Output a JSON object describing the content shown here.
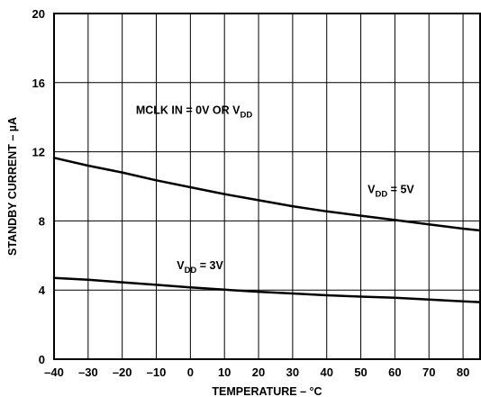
{
  "chart_data": {
    "type": "line",
    "title": "",
    "xlabel": "TEMPERATURE – °C",
    "ylabel": "STANDBY CURRENT – µA",
    "xlim": [
      -40,
      85
    ],
    "ylim": [
      0,
      20
    ],
    "x_ticks": [
      -40,
      -30,
      -20,
      -10,
      0,
      10,
      20,
      30,
      40,
      50,
      60,
      70,
      80
    ],
    "y_ticks": [
      0,
      4,
      8,
      12,
      16,
      20
    ],
    "grid": true,
    "legend": "none",
    "series": [
      {
        "name": "VDD = 5V",
        "x": [
          -40,
          -30,
          -20,
          -10,
          0,
          10,
          20,
          30,
          40,
          50,
          60,
          70,
          80,
          85
        ],
        "y": [
          11.65,
          11.2,
          10.8,
          10.35,
          9.95,
          9.55,
          9.2,
          8.85,
          8.55,
          8.3,
          8.05,
          7.8,
          7.55,
          7.45
        ],
        "color": "#000000"
      },
      {
        "name": "VDD = 3V",
        "x": [
          -40,
          -30,
          -20,
          -10,
          0,
          10,
          20,
          30,
          40,
          50,
          60,
          70,
          80,
          85
        ],
        "y": [
          4.7,
          4.6,
          4.45,
          4.3,
          4.15,
          4.02,
          3.9,
          3.8,
          3.7,
          3.62,
          3.55,
          3.45,
          3.35,
          3.3
        ],
        "color": "#000000"
      }
    ],
    "annotations": [
      {
        "id": "mclk",
        "text": "MCLK IN = 0V OR V",
        "sub": "DD",
        "suffix": "",
        "x": -16,
        "y": 14.2
      },
      {
        "id": "vdd5",
        "text": "V",
        "sub": "DD",
        "suffix": " = 5V",
        "x": 52,
        "y": 9.6
      },
      {
        "id": "vdd3",
        "text": "V",
        "sub": "DD",
        "suffix": " = 3V",
        "x": -4,
        "y": 5.2
      }
    ]
  }
}
